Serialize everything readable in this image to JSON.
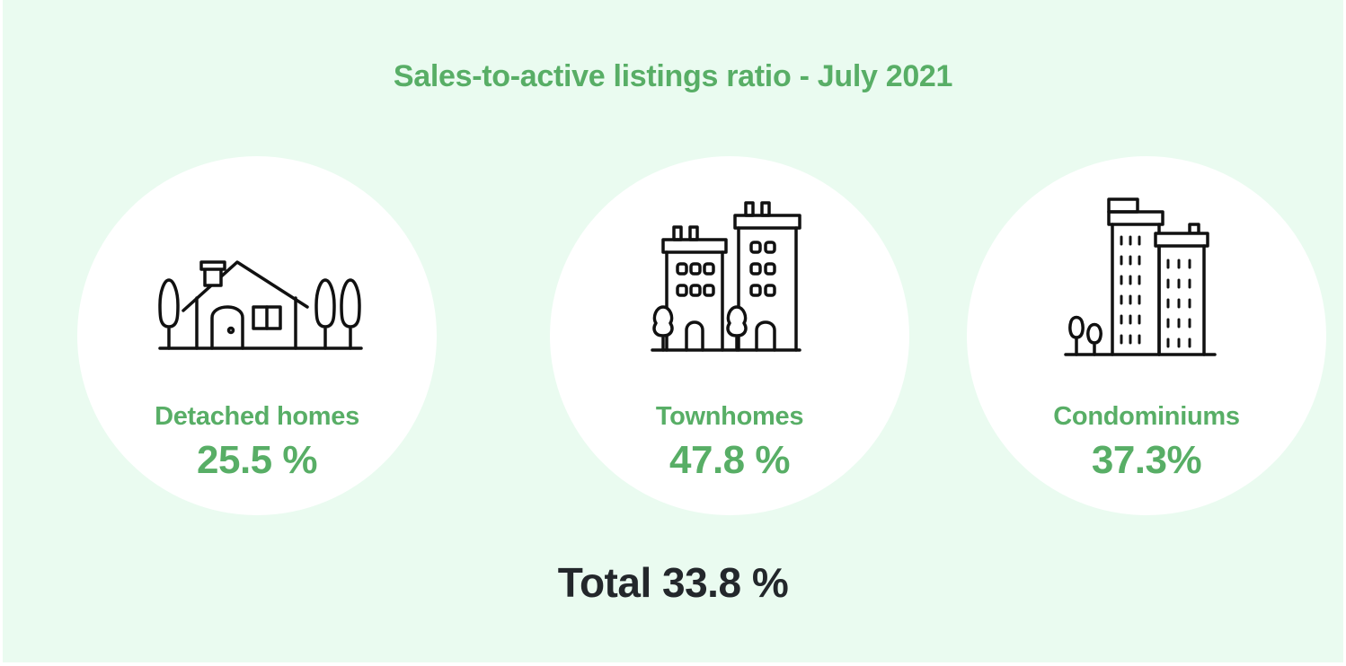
{
  "title": "Sales-to-active listings ratio - July 2021",
  "categories": [
    {
      "icon": "detached-house-icon",
      "label": "Detached homes",
      "value": "25.5 %"
    },
    {
      "icon": "townhomes-icon",
      "label": "Townhomes",
      "value": "47.8 %"
    },
    {
      "icon": "condominiums-icon",
      "label": "Condominiums",
      "value": "37.3%"
    }
  ],
  "total": "Total 33.8 %",
  "colors": {
    "background": "#eafbf0",
    "circle": "#ffffff",
    "accent": "#58ae66",
    "total_text": "#23272b",
    "icon_stroke": "#111111"
  }
}
